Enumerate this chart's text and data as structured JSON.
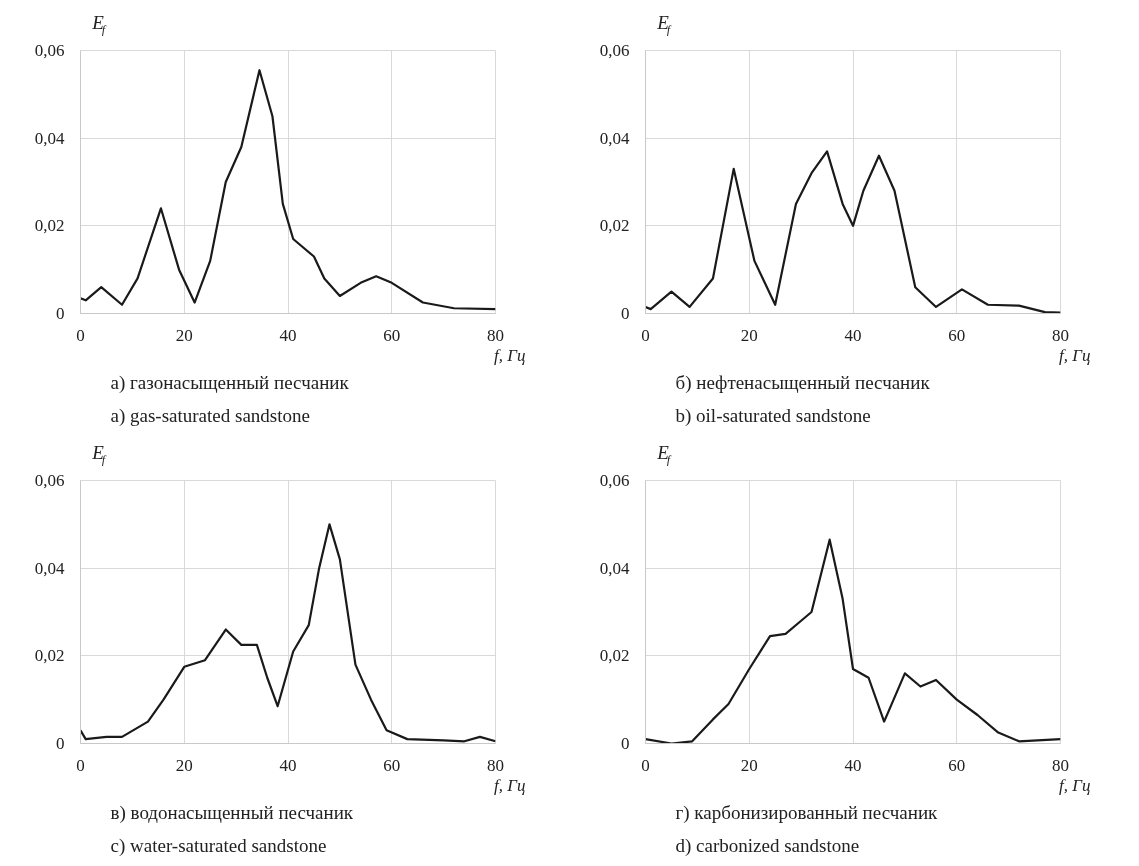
{
  "chart_data": [
    {
      "type": "line",
      "xlabel": "f, Гц",
      "ylabel": "E$_{f}$",
      "xlim": [
        0,
        80
      ],
      "ylim": [
        0,
        0.06
      ],
      "xticks": [
        0,
        20,
        40,
        60,
        80
      ],
      "yticks": [
        0,
        {
          "value": 0.02,
          "label": "0,02"
        },
        {
          "value": 0.04,
          "label": "0,04"
        },
        {
          "value": 0.06,
          "label": "0,06"
        }
      ],
      "grid": true,
      "line_style": "solid",
      "series": [
        {
          "color": "#1a1a1a",
          "x": [
            0,
            1,
            4,
            8,
            11,
            15.5,
            19,
            22,
            25,
            28,
            31,
            34.5,
            37,
            39,
            41,
            45,
            47,
            50,
            54,
            57,
            60,
            66,
            72,
            80
          ],
          "values": [
            0.0035,
            0.003,
            0.006,
            0.002,
            0.008,
            0.024,
            0.01,
            0.0025,
            0.012,
            0.03,
            0.038,
            0.0555,
            0.045,
            0.025,
            0.017,
            0.013,
            0.008,
            0.004,
            0.007,
            0.0085,
            0.007,
            0.0025,
            0.0012,
            0.001
          ]
        }
      ],
      "annotations": [
        "а) газонасыщенный песчаник",
        "a) gas-saturated sandstone"
      ]
    },
    {
      "type": "line",
      "xlabel": "f, Гц",
      "ylabel": "E$_{f}$",
      "xlim": [
        0,
        80
      ],
      "ylim": [
        0,
        0.06
      ],
      "xticks": [
        0,
        20,
        40,
        60,
        80
      ],
      "yticks": [
        0,
        {
          "value": 0.02,
          "label": "0,02"
        },
        {
          "value": 0.04,
          "label": "0,04"
        },
        {
          "value": 0.06,
          "label": "0,06"
        }
      ],
      "grid": true,
      "line_style": "solid",
      "series": [
        {
          "color": "#1a1a1a",
          "x": [
            0,
            1,
            5,
            8.5,
            13,
            17,
            21,
            25,
            29,
            32,
            35,
            38,
            40,
            42,
            45,
            48,
            52,
            56,
            61,
            66,
            72,
            77,
            80
          ],
          "values": [
            0.0015,
            0.001,
            0.005,
            0.0015,
            0.008,
            0.033,
            0.012,
            0.002,
            0.025,
            0.032,
            0.037,
            0.025,
            0.02,
            0.028,
            0.036,
            0.028,
            0.006,
            0.0015,
            0.0055,
            0.002,
            0.0018,
            0.0003,
            0.0002
          ]
        }
      ],
      "annotations": [
        "б) нефтенасыщенный песчаник",
        "b) oil-saturated sandstone"
      ]
    },
    {
      "type": "line",
      "xlabel": "f, Гц",
      "ylabel": "E$_{f}$",
      "xlim": [
        0,
        80
      ],
      "ylim": [
        0,
        0.06
      ],
      "xticks": [
        0,
        20,
        40,
        60,
        80
      ],
      "yticks": [
        0,
        {
          "value": 0.02,
          "label": "0,02"
        },
        {
          "value": 0.04,
          "label": "0,04"
        },
        {
          "value": 0.06,
          "label": "0,06"
        }
      ],
      "grid": true,
      "line_style": "solid",
      "series": [
        {
          "color": "#1a1a1a",
          "x": [
            0,
            1,
            5,
            8,
            13,
            16,
            20,
            24,
            28,
            31,
            34,
            36,
            38,
            41,
            44,
            46,
            48,
            50,
            53,
            56,
            59,
            63,
            70,
            74,
            77,
            80
          ],
          "values": [
            0.003,
            0.001,
            0.0015,
            0.0015,
            0.005,
            0.01,
            0.0175,
            0.019,
            0.026,
            0.0225,
            0.0225,
            0.015,
            0.0085,
            0.021,
            0.027,
            0.04,
            0.05,
            0.042,
            0.018,
            0.01,
            0.003,
            0.001,
            0.0007,
            0.0005,
            0.0015,
            0.0005
          ]
        }
      ],
      "annotations": [
        "в) водонасыщенный песчаник",
        "c) water-saturated sandstone"
      ]
    },
    {
      "type": "line",
      "xlabel": "f, Гц",
      "ylabel": "E$_{f}$",
      "xlim": [
        0,
        80
      ],
      "ylim": [
        0,
        0.06
      ],
      "xticks": [
        0,
        20,
        40,
        60,
        80
      ],
      "yticks": [
        0,
        {
          "value": 0.02,
          "label": "0,02"
        },
        {
          "value": 0.04,
          "label": "0,04"
        },
        {
          "value": 0.06,
          "label": "0,06"
        }
      ],
      "grid": true,
      "line_style": "solid",
      "series": [
        {
          "color": "#1a1a1a",
          "x": [
            0,
            5,
            9,
            13,
            16,
            20,
            24,
            27,
            30,
            32,
            35.5,
            38,
            40,
            43,
            46,
            50,
            53,
            56,
            60,
            64,
            68,
            72,
            80
          ],
          "values": [
            0.001,
            0,
            0.0005,
            0.0055,
            0.009,
            0.017,
            0.0245,
            0.025,
            0.028,
            0.03,
            0.0465,
            0.033,
            0.017,
            0.015,
            0.005,
            0.016,
            0.013,
            0.0145,
            0.01,
            0.0065,
            0.0025,
            0.0005,
            0.001
          ]
        }
      ],
      "annotations": [
        "г) карбонизированный песчаник",
        "d) carbonized sandstone"
      ]
    }
  ]
}
